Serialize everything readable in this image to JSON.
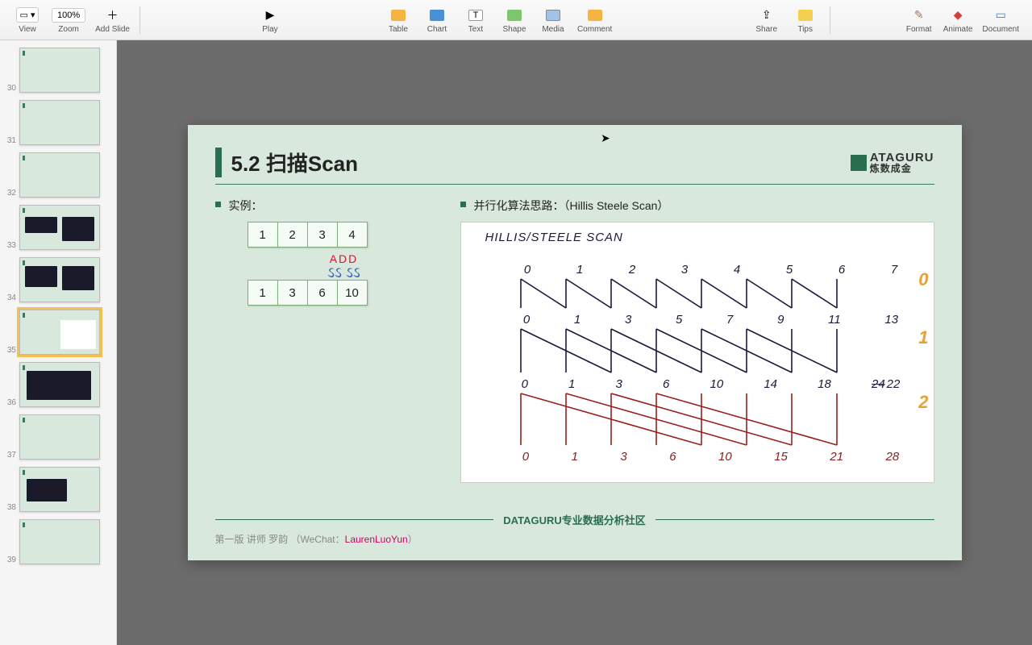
{
  "toolbar": {
    "view": "View",
    "zoom": "Zoom",
    "zoom_val": "100%",
    "addslide": "Add Slide",
    "play": "Play",
    "table": "Table",
    "chart": "Chart",
    "text": "Text",
    "shape": "Shape",
    "media": "Media",
    "comment": "Comment",
    "share": "Share",
    "tips": "Tips",
    "format": "Format",
    "animate": "Animate",
    "document": "Document"
  },
  "thumbs": {
    "start": 30,
    "selected": 35,
    "count": 10
  },
  "slide": {
    "title": "5.2 扫描Scan",
    "logo_top": "ATAGURU",
    "logo_sub": "炼数成金",
    "left_heading": "实例：",
    "right_heading": "并行化算法思路：（Hillis Steele Scan）",
    "arr_in": [
      "1",
      "2",
      "3",
      "4"
    ],
    "add_label": "ADD",
    "arr_out": [
      "1",
      "3",
      "6",
      "10"
    ],
    "hw": {
      "title": "HILLIS/STEELE  SCAN",
      "row0": [
        "0",
        "1",
        "2",
        "3",
        "4",
        "5",
        "6",
        "7"
      ],
      "row1": [
        "0",
        "1",
        "3",
        "5",
        "7",
        "9",
        "11",
        "13"
      ],
      "row2": [
        "0",
        "1",
        "3",
        "6",
        "10",
        "14",
        "18",
        "22"
      ],
      "row2_strike": "24",
      "row3": [
        "0",
        "1",
        "3",
        "6",
        "10",
        "15",
        "21",
        "28"
      ],
      "side": [
        "0",
        "1",
        "2"
      ],
      "side_colors": [
        "#e8a030",
        "#e8a030",
        "#e8a030"
      ],
      "stroke1": "#1a1a3a",
      "stroke2": "#9a2020"
    },
    "footer_brand": "DATAGURU专业数据分析社区",
    "credit_pre": "第一版 讲师 罗韵 （WeChat：",
    "credit_link": "LaurenLuoYun",
    "credit_post": "）"
  },
  "colors": {
    "slide_bg": "#d9e8dd",
    "accent": "#2a6e4f"
  }
}
